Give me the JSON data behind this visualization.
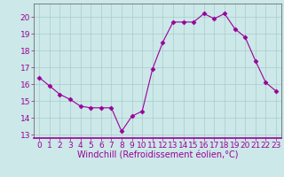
{
  "x": [
    0,
    1,
    2,
    3,
    4,
    5,
    6,
    7,
    8,
    9,
    10,
    11,
    12,
    13,
    14,
    15,
    16,
    17,
    18,
    19,
    20,
    21,
    22,
    23
  ],
  "y": [
    16.4,
    15.9,
    15.4,
    15.1,
    14.7,
    14.6,
    14.6,
    14.6,
    13.2,
    14.1,
    14.4,
    16.9,
    18.5,
    19.7,
    19.7,
    19.7,
    20.2,
    19.9,
    20.2,
    19.3,
    18.8,
    17.4,
    16.1,
    15.6
  ],
  "line_color": "#990099",
  "marker": "D",
  "marker_size": 2.5,
  "bg_color": "#cce8e8",
  "grid_color": "#aacccc",
  "xlabel": "Windchill (Refroidissement éolien,°C)",
  "xlabel_fontsize": 7,
  "ylim": [
    12.8,
    20.8
  ],
  "xlim": [
    -0.5,
    23.5
  ],
  "yticks": [
    13,
    14,
    15,
    16,
    17,
    18,
    19,
    20
  ],
  "xticks": [
    0,
    1,
    2,
    3,
    4,
    5,
    6,
    7,
    8,
    9,
    10,
    11,
    12,
    13,
    14,
    15,
    16,
    17,
    18,
    19,
    20,
    21,
    22,
    23
  ],
  "tick_fontsize": 6.5,
  "tick_color": "#990099",
  "spine_color": "#555555",
  "spine_bottom_color": "#990099"
}
